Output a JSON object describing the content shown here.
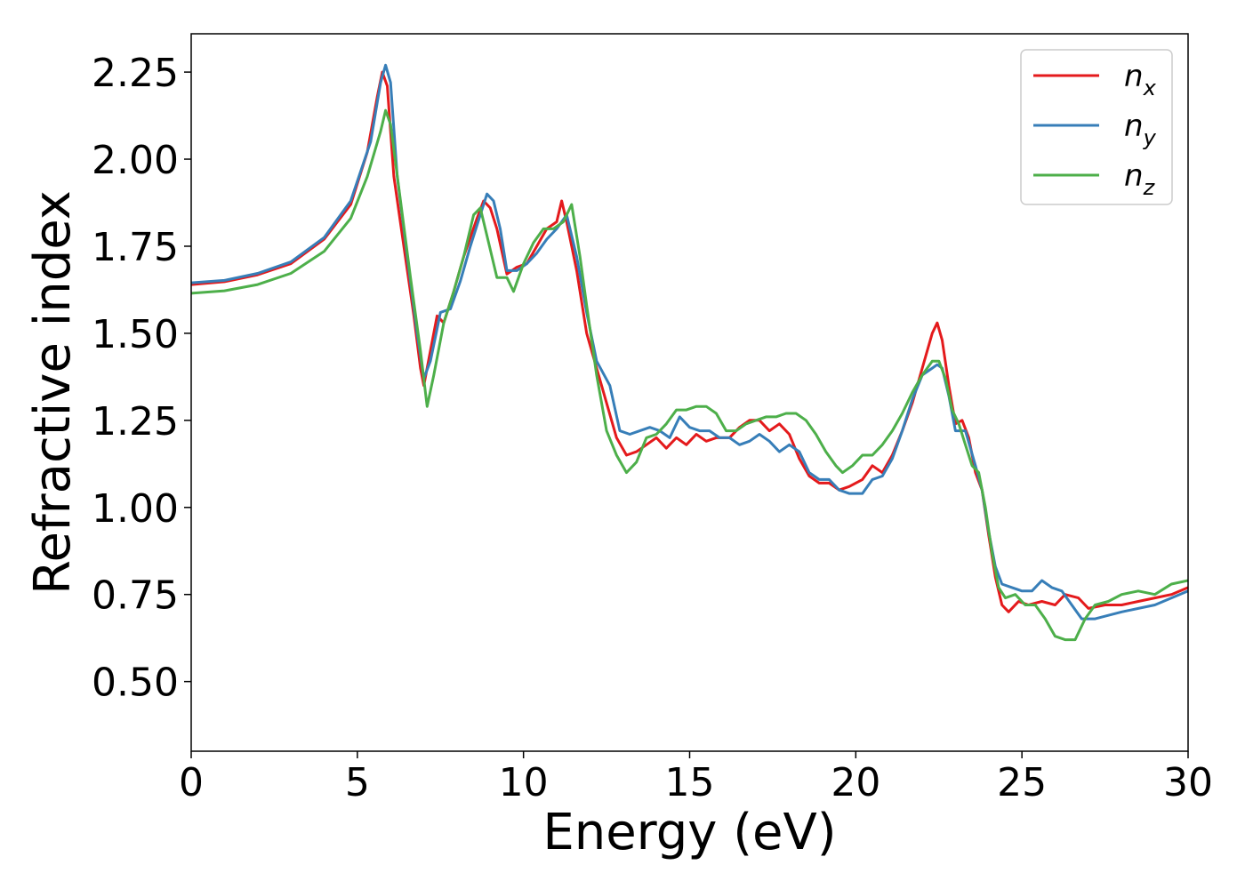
{
  "chart_data": {
    "type": "line",
    "xlabel": "Energy (eV)",
    "ylabel": "Refractive index",
    "xlim": [
      0,
      30
    ],
    "ylim": [
      0.3,
      2.36
    ],
    "xticks": [
      0,
      5,
      10,
      15,
      20,
      25,
      30
    ],
    "xtick_labels": [
      "0",
      "5",
      "10",
      "15",
      "20",
      "25",
      "30"
    ],
    "yticks": [
      0.5,
      0.75,
      1.0,
      1.25,
      1.5,
      1.75,
      2.0,
      2.25
    ],
    "ytick_labels": [
      "0.50",
      "0.75",
      "1.00",
      "1.25",
      "1.50",
      "1.75",
      "2.00",
      "2.25"
    ],
    "grid": false,
    "legend_position": "top-right",
    "series": [
      {
        "name": "n",
        "subscript": "x",
        "color": "#e41a1c",
        "points": [
          [
            0,
            1.64
          ],
          [
            1,
            1.648
          ],
          [
            2,
            1.668
          ],
          [
            3,
            1.7
          ],
          [
            4,
            1.77
          ],
          [
            4.8,
            1.87
          ],
          [
            5.3,
            2.02
          ],
          [
            5.6,
            2.18
          ],
          [
            5.75,
            2.25
          ],
          [
            5.9,
            2.21
          ],
          [
            6.1,
            1.95
          ],
          [
            6.4,
            1.75
          ],
          [
            6.7,
            1.55
          ],
          [
            6.9,
            1.4
          ],
          [
            7.0,
            1.35
          ],
          [
            7.2,
            1.45
          ],
          [
            7.4,
            1.55
          ],
          [
            7.6,
            1.53
          ],
          [
            7.9,
            1.62
          ],
          [
            8.2,
            1.72
          ],
          [
            8.6,
            1.83
          ],
          [
            8.8,
            1.88
          ],
          [
            9.0,
            1.86
          ],
          [
            9.2,
            1.8
          ],
          [
            9.5,
            1.67
          ],
          [
            9.8,
            1.69
          ],
          [
            10.1,
            1.7
          ],
          [
            10.4,
            1.75
          ],
          [
            10.7,
            1.8
          ],
          [
            11.0,
            1.82
          ],
          [
            11.15,
            1.88
          ],
          [
            11.3,
            1.82
          ],
          [
            11.6,
            1.68
          ],
          [
            11.9,
            1.5
          ],
          [
            12.2,
            1.4
          ],
          [
            12.5,
            1.3
          ],
          [
            12.8,
            1.2
          ],
          [
            13.1,
            1.15
          ],
          [
            13.4,
            1.16
          ],
          [
            13.7,
            1.18
          ],
          [
            14.0,
            1.2
          ],
          [
            14.3,
            1.17
          ],
          [
            14.6,
            1.2
          ],
          [
            14.9,
            1.18
          ],
          [
            15.2,
            1.21
          ],
          [
            15.5,
            1.19
          ],
          [
            15.8,
            1.2
          ],
          [
            16.2,
            1.2
          ],
          [
            16.5,
            1.23
          ],
          [
            16.8,
            1.25
          ],
          [
            17.1,
            1.25
          ],
          [
            17.4,
            1.22
          ],
          [
            17.7,
            1.24
          ],
          [
            18.0,
            1.21
          ],
          [
            18.3,
            1.14
          ],
          [
            18.6,
            1.09
          ],
          [
            18.9,
            1.07
          ],
          [
            19.2,
            1.07
          ],
          [
            19.5,
            1.05
          ],
          [
            19.8,
            1.06
          ],
          [
            20.2,
            1.08
          ],
          [
            20.5,
            1.12
          ],
          [
            20.8,
            1.1
          ],
          [
            21.1,
            1.15
          ],
          [
            21.4,
            1.22
          ],
          [
            21.7,
            1.3
          ],
          [
            22.0,
            1.4
          ],
          [
            22.3,
            1.5
          ],
          [
            22.45,
            1.53
          ],
          [
            22.6,
            1.48
          ],
          [
            22.8,
            1.35
          ],
          [
            23.0,
            1.24
          ],
          [
            23.2,
            1.25
          ],
          [
            23.4,
            1.2
          ],
          [
            23.6,
            1.1
          ],
          [
            23.8,
            1.05
          ],
          [
            24.0,
            0.92
          ],
          [
            24.2,
            0.8
          ],
          [
            24.4,
            0.72
          ],
          [
            24.6,
            0.7
          ],
          [
            24.9,
            0.73
          ],
          [
            25.2,
            0.72
          ],
          [
            25.6,
            0.73
          ],
          [
            26.0,
            0.72
          ],
          [
            26.3,
            0.75
          ],
          [
            26.7,
            0.74
          ],
          [
            27.0,
            0.71
          ],
          [
            27.5,
            0.72
          ],
          [
            28.0,
            0.72
          ],
          [
            28.5,
            0.73
          ],
          [
            29.0,
            0.74
          ],
          [
            29.5,
            0.75
          ],
          [
            30,
            0.77
          ]
        ]
      },
      {
        "name": "n",
        "subscript": "y",
        "color": "#377eb8",
        "points": [
          [
            0,
            1.645
          ],
          [
            1,
            1.652
          ],
          [
            2,
            1.672
          ],
          [
            3,
            1.705
          ],
          [
            4,
            1.775
          ],
          [
            4.8,
            1.88
          ],
          [
            5.4,
            2.05
          ],
          [
            5.7,
            2.22
          ],
          [
            5.85,
            2.27
          ],
          [
            6.0,
            2.22
          ],
          [
            6.2,
            1.95
          ],
          [
            6.5,
            1.72
          ],
          [
            6.8,
            1.5
          ],
          [
            7.0,
            1.37
          ],
          [
            7.2,
            1.42
          ],
          [
            7.5,
            1.56
          ],
          [
            7.8,
            1.57
          ],
          [
            8.1,
            1.65
          ],
          [
            8.4,
            1.75
          ],
          [
            8.7,
            1.84
          ],
          [
            8.9,
            1.9
          ],
          [
            9.1,
            1.88
          ],
          [
            9.3,
            1.8
          ],
          [
            9.5,
            1.68
          ],
          [
            9.8,
            1.68
          ],
          [
            10.1,
            1.7
          ],
          [
            10.4,
            1.73
          ],
          [
            10.7,
            1.77
          ],
          [
            11.0,
            1.8
          ],
          [
            11.3,
            1.84
          ],
          [
            11.6,
            1.72
          ],
          [
            11.9,
            1.56
          ],
          [
            12.2,
            1.42
          ],
          [
            12.6,
            1.35
          ],
          [
            12.9,
            1.22
          ],
          [
            13.2,
            1.21
          ],
          [
            13.5,
            1.22
          ],
          [
            13.8,
            1.23
          ],
          [
            14.1,
            1.22
          ],
          [
            14.4,
            1.2
          ],
          [
            14.7,
            1.26
          ],
          [
            15.0,
            1.23
          ],
          [
            15.3,
            1.22
          ],
          [
            15.6,
            1.22
          ],
          [
            15.9,
            1.2
          ],
          [
            16.2,
            1.2
          ],
          [
            16.5,
            1.18
          ],
          [
            16.8,
            1.19
          ],
          [
            17.1,
            1.21
          ],
          [
            17.4,
            1.19
          ],
          [
            17.7,
            1.16
          ],
          [
            18.0,
            1.18
          ],
          [
            18.3,
            1.16
          ],
          [
            18.6,
            1.1
          ],
          [
            18.9,
            1.08
          ],
          [
            19.2,
            1.08
          ],
          [
            19.5,
            1.05
          ],
          [
            19.8,
            1.04
          ],
          [
            20.2,
            1.04
          ],
          [
            20.5,
            1.08
          ],
          [
            20.8,
            1.09
          ],
          [
            21.1,
            1.14
          ],
          [
            21.4,
            1.22
          ],
          [
            21.7,
            1.31
          ],
          [
            22.0,
            1.38
          ],
          [
            22.3,
            1.4
          ],
          [
            22.45,
            1.41
          ],
          [
            22.6,
            1.4
          ],
          [
            22.8,
            1.32
          ],
          [
            23.0,
            1.22
          ],
          [
            23.3,
            1.22
          ],
          [
            23.6,
            1.12
          ],
          [
            23.8,
            1.05
          ],
          [
            24.0,
            0.93
          ],
          [
            24.2,
            0.83
          ],
          [
            24.4,
            0.78
          ],
          [
            24.7,
            0.77
          ],
          [
            25.0,
            0.76
          ],
          [
            25.3,
            0.76
          ],
          [
            25.6,
            0.79
          ],
          [
            25.9,
            0.77
          ],
          [
            26.2,
            0.76
          ],
          [
            26.5,
            0.72
          ],
          [
            26.8,
            0.68
          ],
          [
            27.2,
            0.68
          ],
          [
            27.6,
            0.69
          ],
          [
            28.0,
            0.7
          ],
          [
            28.5,
            0.71
          ],
          [
            29.0,
            0.72
          ],
          [
            29.5,
            0.74
          ],
          [
            30,
            0.76
          ]
        ]
      },
      {
        "name": "n",
        "subscript": "z",
        "color": "#4daf4a",
        "points": [
          [
            0,
            1.615
          ],
          [
            1,
            1.622
          ],
          [
            2,
            1.64
          ],
          [
            3,
            1.672
          ],
          [
            4,
            1.735
          ],
          [
            4.8,
            1.83
          ],
          [
            5.3,
            1.95
          ],
          [
            5.7,
            2.08
          ],
          [
            5.85,
            2.14
          ],
          [
            6.0,
            2.1
          ],
          [
            6.3,
            1.88
          ],
          [
            6.6,
            1.66
          ],
          [
            6.9,
            1.45
          ],
          [
            7.1,
            1.29
          ],
          [
            7.3,
            1.38
          ],
          [
            7.6,
            1.53
          ],
          [
            7.9,
            1.62
          ],
          [
            8.2,
            1.72
          ],
          [
            8.5,
            1.84
          ],
          [
            8.7,
            1.86
          ],
          [
            8.9,
            1.78
          ],
          [
            9.2,
            1.66
          ],
          [
            9.5,
            1.66
          ],
          [
            9.7,
            1.62
          ],
          [
            10.0,
            1.7
          ],
          [
            10.3,
            1.76
          ],
          [
            10.6,
            1.8
          ],
          [
            10.9,
            1.8
          ],
          [
            11.2,
            1.82
          ],
          [
            11.45,
            1.87
          ],
          [
            11.7,
            1.72
          ],
          [
            11.9,
            1.58
          ],
          [
            12.2,
            1.38
          ],
          [
            12.5,
            1.22
          ],
          [
            12.8,
            1.15
          ],
          [
            13.1,
            1.1
          ],
          [
            13.4,
            1.13
          ],
          [
            13.7,
            1.2
          ],
          [
            14.0,
            1.21
          ],
          [
            14.3,
            1.24
          ],
          [
            14.6,
            1.28
          ],
          [
            14.9,
            1.28
          ],
          [
            15.2,
            1.29
          ],
          [
            15.5,
            1.29
          ],
          [
            15.8,
            1.27
          ],
          [
            16.1,
            1.22
          ],
          [
            16.4,
            1.22
          ],
          [
            16.7,
            1.24
          ],
          [
            17.0,
            1.25
          ],
          [
            17.3,
            1.26
          ],
          [
            17.6,
            1.26
          ],
          [
            17.9,
            1.27
          ],
          [
            18.2,
            1.27
          ],
          [
            18.5,
            1.25
          ],
          [
            18.8,
            1.21
          ],
          [
            19.1,
            1.16
          ],
          [
            19.4,
            1.12
          ],
          [
            19.6,
            1.1
          ],
          [
            19.9,
            1.12
          ],
          [
            20.2,
            1.15
          ],
          [
            20.5,
            1.15
          ],
          [
            20.8,
            1.18
          ],
          [
            21.1,
            1.22
          ],
          [
            21.4,
            1.27
          ],
          [
            21.7,
            1.33
          ],
          [
            22.0,
            1.38
          ],
          [
            22.3,
            1.42
          ],
          [
            22.5,
            1.42
          ],
          [
            22.7,
            1.37
          ],
          [
            22.9,
            1.28
          ],
          [
            23.1,
            1.24
          ],
          [
            23.3,
            1.18
          ],
          [
            23.5,
            1.12
          ],
          [
            23.7,
            1.1
          ],
          [
            23.9,
            1.0
          ],
          [
            24.1,
            0.87
          ],
          [
            24.3,
            0.77
          ],
          [
            24.5,
            0.74
          ],
          [
            24.8,
            0.75
          ],
          [
            25.1,
            0.72
          ],
          [
            25.4,
            0.72
          ],
          [
            25.7,
            0.68
          ],
          [
            26.0,
            0.63
          ],
          [
            26.3,
            0.62
          ],
          [
            26.6,
            0.62
          ],
          [
            26.9,
            0.68
          ],
          [
            27.2,
            0.72
          ],
          [
            27.6,
            0.73
          ],
          [
            28.0,
            0.75
          ],
          [
            28.5,
            0.76
          ],
          [
            29.0,
            0.75
          ],
          [
            29.5,
            0.78
          ],
          [
            30,
            0.79
          ]
        ]
      }
    ]
  }
}
